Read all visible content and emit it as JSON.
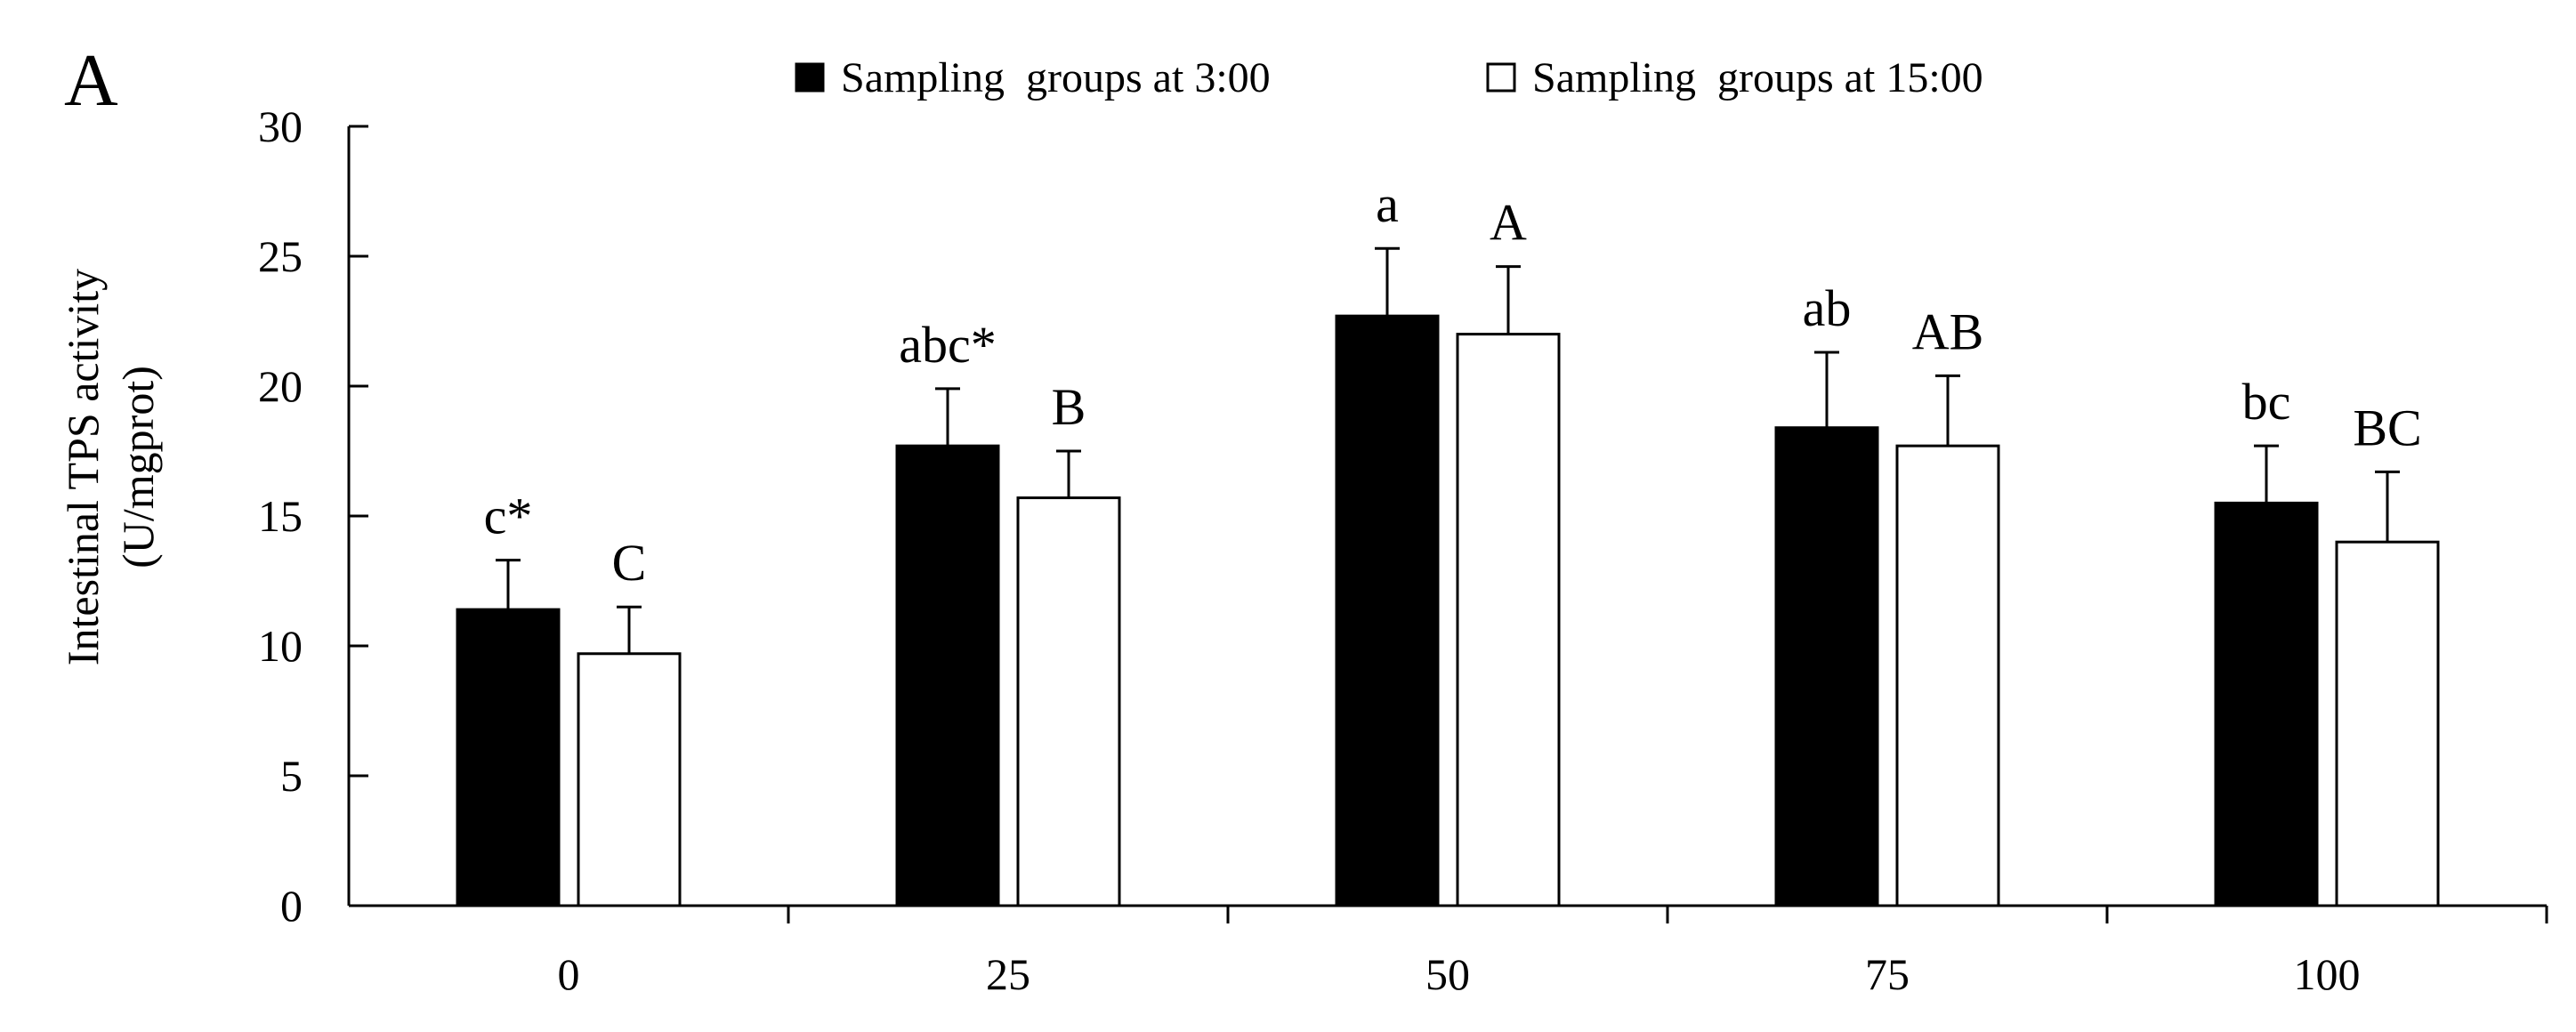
{
  "panel_label": "A",
  "chart_data": {
    "type": "bar",
    "title": "",
    "xlabel": "",
    "ylabel": [
      "Intestinal TPS activity",
      "(U/mgprot)"
    ],
    "ylim": [
      0,
      30
    ],
    "yticks": [
      0,
      5,
      10,
      15,
      20,
      25,
      30
    ],
    "categories": [
      "0",
      "25",
      "50",
      "75",
      "100"
    ],
    "series": [
      {
        "name": "Sampling  groups at 3:00",
        "fill": "#000000",
        "values": [
          11.4,
          17.7,
          22.7,
          18.4,
          15.5
        ],
        "errors": [
          1.9,
          2.2,
          2.6,
          2.9,
          2.2
        ],
        "labels": [
          "c*",
          "abc*",
          "a",
          "ab",
          "bc"
        ]
      },
      {
        "name": "Sampling  groups at 15:00",
        "fill": "#ffffff",
        "values": [
          9.7,
          15.7,
          22.0,
          17.7,
          14.0
        ],
        "errors": [
          1.8,
          1.8,
          2.6,
          2.7,
          2.7
        ],
        "labels": [
          "C",
          "B",
          "A",
          "AB",
          "BC"
        ]
      }
    ],
    "grid": false,
    "legend_position": "top"
  }
}
